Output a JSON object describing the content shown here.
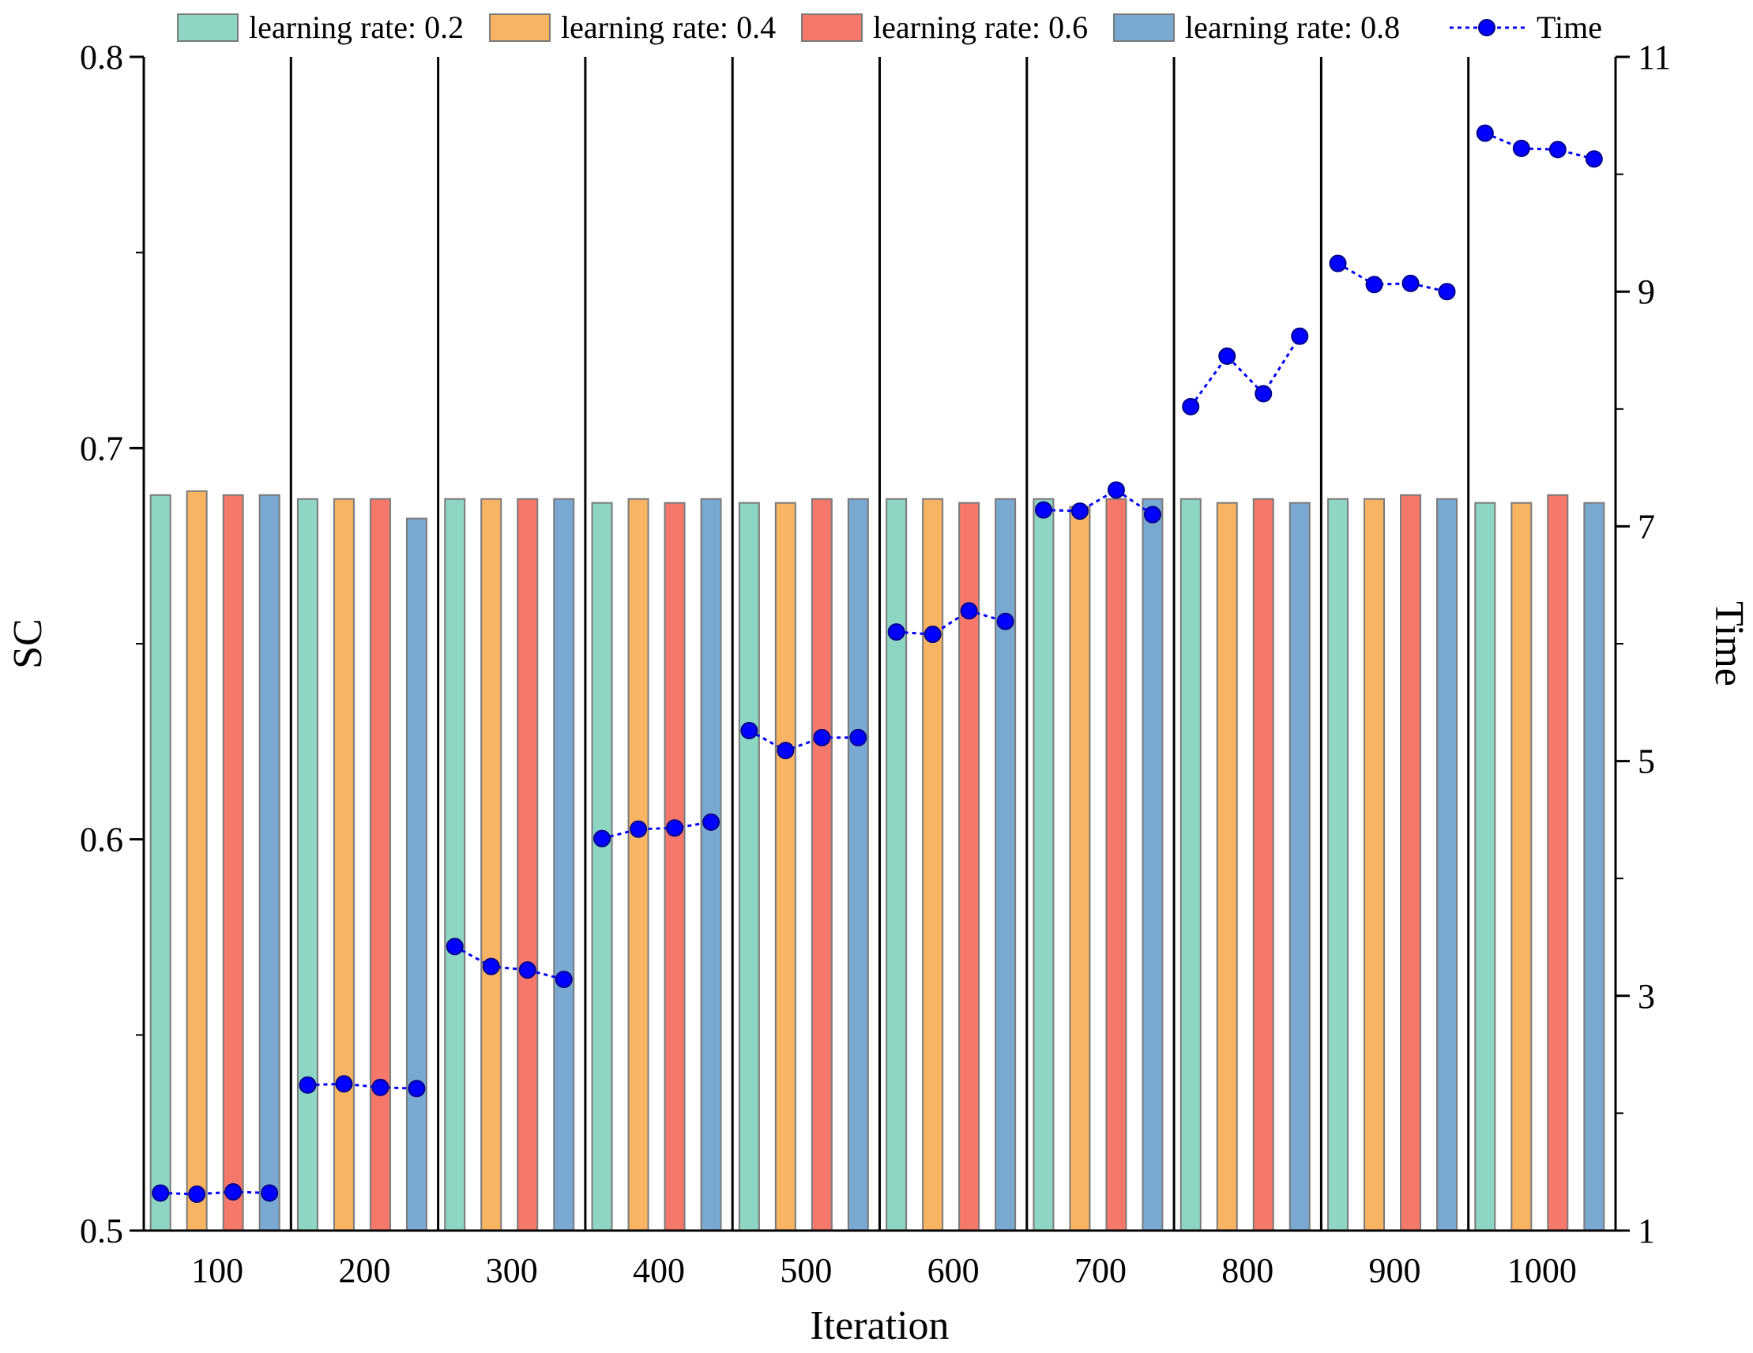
{
  "chart_data": {
    "type": "bar",
    "xlabel": "Iteration",
    "ylabel": "SC",
    "y2label": "Time",
    "ylim": [
      0.5,
      0.8
    ],
    "y2lim": [
      1,
      11
    ],
    "yticks": [
      "0.5",
      "0.6",
      "0.7",
      "0.8"
    ],
    "y2ticks": [
      "1",
      "3",
      "5",
      "7",
      "9",
      "11"
    ],
    "categories": [
      "100",
      "200",
      "300",
      "400",
      "500",
      "600",
      "700",
      "800",
      "900",
      "1000"
    ],
    "series": [
      {
        "name": "learning rate: 0.2",
        "color": "#8fd5c4",
        "values": [
          0.688,
          0.687,
          0.687,
          0.686,
          0.686,
          0.687,
          0.687,
          0.687,
          0.687,
          0.686
        ]
      },
      {
        "name": "learning rate: 0.4",
        "color": "#f9b463",
        "values": [
          0.689,
          0.687,
          0.687,
          0.687,
          0.686,
          0.687,
          0.685,
          0.686,
          0.687,
          0.686
        ]
      },
      {
        "name": "learning rate: 0.6",
        "color": "#f6786b",
        "values": [
          0.688,
          0.687,
          0.687,
          0.686,
          0.687,
          0.686,
          0.687,
          0.687,
          0.688,
          0.688
        ]
      },
      {
        "name": "learning rate: 0.8",
        "color": "#79a9d0",
        "values": [
          0.688,
          0.682,
          0.687,
          0.687,
          0.687,
          0.687,
          0.687,
          0.686,
          0.687,
          0.686
        ]
      }
    ],
    "line_series": {
      "name": "Time",
      "color": "#0000ff",
      "values": [
        [
          1.32,
          1.31,
          1.33,
          1.32
        ],
        [
          2.24,
          2.25,
          2.22,
          2.21
        ],
        [
          3.42,
          3.25,
          3.22,
          3.14
        ],
        [
          4.34,
          4.42,
          4.43,
          4.48
        ],
        [
          5.26,
          5.09,
          5.2,
          5.2
        ],
        [
          6.1,
          6.08,
          6.28,
          6.19
        ],
        [
          7.14,
          7.13,
          7.31,
          7.1
        ],
        [
          8.02,
          8.45,
          8.13,
          8.62
        ],
        [
          9.24,
          9.06,
          9.07,
          9.0
        ],
        [
          10.35,
          10.22,
          10.21,
          10.13
        ]
      ]
    },
    "legend_position": "top"
  }
}
